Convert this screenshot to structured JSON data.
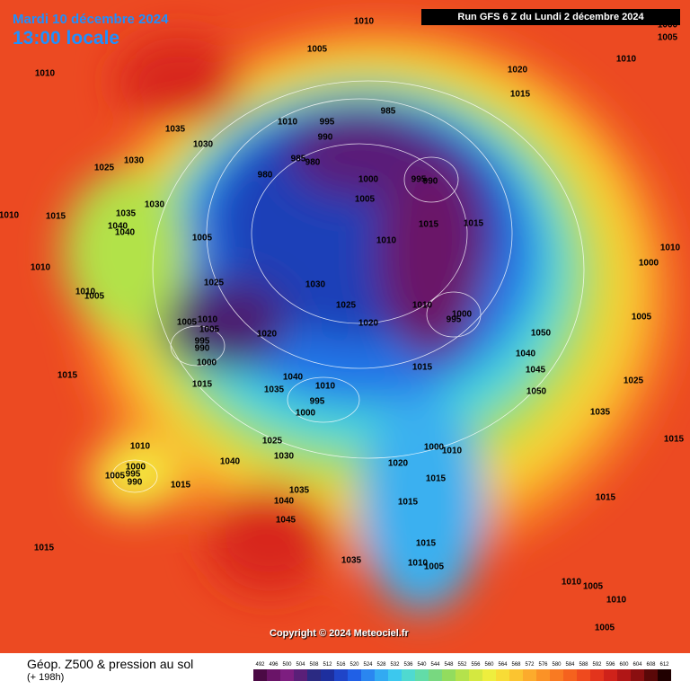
{
  "header": {
    "date": "Mardi 10 décembre 2024",
    "time": "13:00 locale",
    "run": "Run GFS 6 Z du Lundi 2 décembre 2024",
    "copyright": "Copyright © 2024 Meteociel.fr"
  },
  "footer": {
    "title": "Géop. Z500 & pression au sol",
    "lead": "(+ 198h)"
  },
  "colorbar": {
    "levels": [
      492,
      496,
      500,
      504,
      508,
      512,
      516,
      520,
      524,
      528,
      532,
      536,
      540,
      544,
      548,
      552,
      556,
      560,
      564,
      568,
      572,
      576,
      580,
      584,
      588,
      592,
      596,
      600,
      604,
      608,
      612
    ],
    "colors": [
      "#4b0a45",
      "#6a1468",
      "#7d1e80",
      "#5a1f78",
      "#2b2a82",
      "#1d2f9e",
      "#1f45c8",
      "#2060e6",
      "#2a86f0",
      "#32aaf2",
      "#3cc8ee",
      "#4fd9d0",
      "#62dca8",
      "#78d880",
      "#92dc5e",
      "#b4e24c",
      "#d4e840",
      "#eeee3e",
      "#f8dc36",
      "#fbc430",
      "#fcab2c",
      "#fb9226",
      "#f97a22",
      "#f5621e",
      "#ef4a1e",
      "#e3341c",
      "#cf221a",
      "#b01616",
      "#8a0f10",
      "#5a0808",
      "#200000"
    ]
  },
  "pressure_labels": [
    1010,
    1000,
    1005,
    1010,
    1005,
    1020,
    1010,
    1015,
    985,
    995,
    1010,
    990,
    1035,
    1030,
    1030,
    1025,
    985,
    980,
    980,
    1000,
    995,
    990,
    1005,
    1030,
    1035,
    1015,
    1010,
    1040,
    1040,
    1015,
    1015,
    1010,
    1005,
    1010,
    1000,
    1010,
    1025,
    1030,
    1010,
    1005,
    1025,
    1010,
    1000,
    995,
    1005,
    1010,
    1005,
    1020,
    1020,
    1050,
    1005,
    995,
    990,
    1000,
    1040,
    1045,
    1015,
    1015,
    1040,
    1015,
    1035,
    1010,
    995,
    1000,
    1050,
    1025,
    1035,
    1015,
    1025,
    1030,
    1040,
    1010,
    1000,
    1010,
    1020,
    1015,
    1000,
    1005,
    995,
    990,
    1015,
    1035,
    1040,
    1015,
    1015,
    1045,
    1015,
    1015,
    1035,
    1010,
    1005,
    1010,
    1005,
    1010,
    1005
  ]
}
